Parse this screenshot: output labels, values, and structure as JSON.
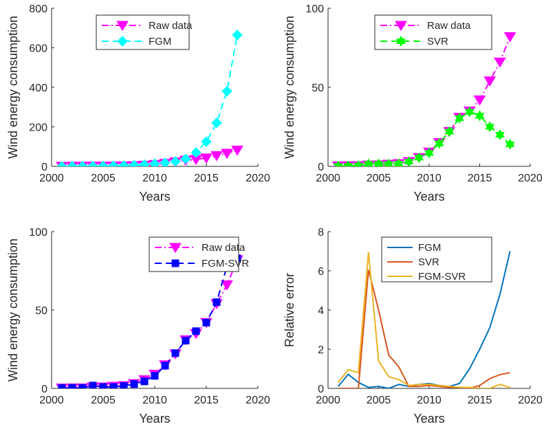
{
  "chart_data": [
    {
      "type": "line",
      "xlabel": "Years",
      "ylabel": "Wind energy consumption",
      "xlim": [
        2000,
        2020
      ],
      "ylim": [
        0,
        800
      ],
      "xticks": [
        2000,
        2005,
        2010,
        2015,
        2020
      ],
      "yticks": [
        0,
        200,
        400,
        600,
        800
      ],
      "legend_position": "top-center",
      "x": [
        2001,
        2002,
        2003,
        2004,
        2005,
        2006,
        2007,
        2008,
        2009,
        2010,
        2011,
        2012,
        2013,
        2014,
        2015,
        2016,
        2017,
        2018
      ],
      "series": [
        {
          "name": "Raw data",
          "color": "#ff00ff",
          "line": "dashdot",
          "marker": "triangle-down",
          "values": [
            0.2,
            0.3,
            0.3,
            0.8,
            0.9,
            1.3,
            1.7,
            3.0,
            5.5,
            9.0,
            15.0,
            22.0,
            31.0,
            35.0,
            42.0,
            54.0,
            66.0,
            82.0
          ]
        },
        {
          "name": "FGM",
          "color": "#00ffff",
          "line": "dashed",
          "marker": "diamond",
          "values": [
            0.2,
            0.5,
            0.8,
            1.5,
            2.0,
            3.0,
            4.0,
            6.0,
            9.0,
            13.0,
            18.0,
            25.0,
            38.0,
            70.0,
            125.0,
            220.0,
            380.0,
            665.0
          ]
        }
      ]
    },
    {
      "type": "line",
      "xlabel": "Years",
      "ylabel": "Wind energy consumption",
      "xlim": [
        2000,
        2020
      ],
      "ylim": [
        0,
        100
      ],
      "xticks": [
        2000,
        2005,
        2010,
        2015,
        2020
      ],
      "yticks": [
        0,
        50,
        100
      ],
      "legend_position": "top-center",
      "x": [
        2001,
        2002,
        2003,
        2004,
        2005,
        2006,
        2007,
        2008,
        2009,
        2010,
        2011,
        2012,
        2013,
        2014,
        2015,
        2016,
        2017,
        2018
      ],
      "series": [
        {
          "name": "Raw data",
          "color": "#ff00ff",
          "line": "dashdot",
          "marker": "triangle-down",
          "values": [
            0.2,
            0.3,
            0.3,
            0.8,
            0.9,
            1.3,
            1.7,
            3.0,
            5.5,
            9.0,
            15.0,
            22.0,
            31.0,
            35.0,
            42.0,
            54.0,
            66.0,
            82.0
          ]
        },
        {
          "name": "SVR",
          "color": "#00ff00",
          "line": "dashed",
          "marker": "hexagram",
          "values": [
            0.2,
            0.3,
            0.5,
            1.5,
            1.5,
            1.5,
            1.7,
            3.0,
            5.5,
            8.5,
            14.5,
            22.0,
            30.5,
            34.5,
            32.0,
            25.0,
            20.0,
            14.0
          ]
        }
      ]
    },
    {
      "type": "line",
      "xlabel": "Years",
      "ylabel": "Wind energy consumption",
      "xlim": [
        2000,
        2020
      ],
      "ylim": [
        0,
        100
      ],
      "xticks": [
        2000,
        2005,
        2010,
        2015,
        2020
      ],
      "yticks": [
        0,
        50,
        100
      ],
      "legend_position": "top-right",
      "x": [
        2001,
        2002,
        2003,
        2004,
        2005,
        2006,
        2007,
        2008,
        2009,
        2010,
        2011,
        2012,
        2013,
        2014,
        2015,
        2016,
        2017,
        2018
      ],
      "series": [
        {
          "name": "Raw data",
          "color": "#ff00ff",
          "line": "dashdot",
          "marker": "triangle-down",
          "values": [
            0.2,
            0.3,
            0.3,
            0.8,
            0.9,
            1.3,
            1.7,
            3.0,
            5.5,
            9.0,
            15.0,
            22.0,
            31.0,
            35.0,
            42.0,
            54.0,
            66.0,
            82.0
          ]
        },
        {
          "name": "FGM-SVR",
          "color": "#0000ff",
          "line": "dashed",
          "marker": "square",
          "values": [
            0.2,
            0.4,
            0.3,
            1.8,
            0.9,
            0.9,
            1.5,
            2.8,
            4.5,
            8.0,
            14.5,
            22.5,
            30.5,
            36.5,
            42.0,
            55.0,
            78.0,
            83.0
          ]
        }
      ]
    },
    {
      "type": "line",
      "xlabel": "Years",
      "ylabel": "Relative error",
      "xlim": [
        2000,
        2020
      ],
      "ylim": [
        0,
        8
      ],
      "xticks": [
        2000,
        2005,
        2010,
        2015,
        2020
      ],
      "yticks": [
        0,
        2,
        4,
        6,
        8
      ],
      "legend_position": "top-center",
      "x": [
        2001,
        2002,
        2003,
        2004,
        2005,
        2006,
        2007,
        2008,
        2009,
        2010,
        2011,
        2012,
        2013,
        2014,
        2015,
        2016,
        2017,
        2018
      ],
      "series": [
        {
          "name": "FGM",
          "color": "#0072bd",
          "line": "solid",
          "marker": "none",
          "values": [
            0.1,
            0.72,
            0.3,
            0.05,
            0.1,
            0.0,
            0.2,
            0.1,
            0.2,
            0.25,
            0.15,
            0.1,
            0.25,
            1.0,
            2.0,
            3.1,
            4.8,
            7.0
          ]
        },
        {
          "name": "SVR",
          "color": "#d95319",
          "line": "solid",
          "marker": "none",
          "values": [
            0.0,
            0.0,
            0.0,
            6.05,
            4.0,
            1.7,
            1.1,
            0.1,
            0.1,
            0.15,
            0.1,
            0.05,
            0.05,
            0.0,
            0.15,
            0.5,
            0.7,
            0.8
          ]
        },
        {
          "name": "FGM-SVR",
          "color": "#edb120",
          "line": "solid",
          "marker": "none",
          "values": [
            0.3,
            0.95,
            0.8,
            6.95,
            1.4,
            0.6,
            0.45,
            0.15,
            0.2,
            0.2,
            0.15,
            0.1,
            0.05,
            0.05,
            0.0,
            0.0,
            0.2,
            0.05
          ]
        }
      ]
    }
  ]
}
